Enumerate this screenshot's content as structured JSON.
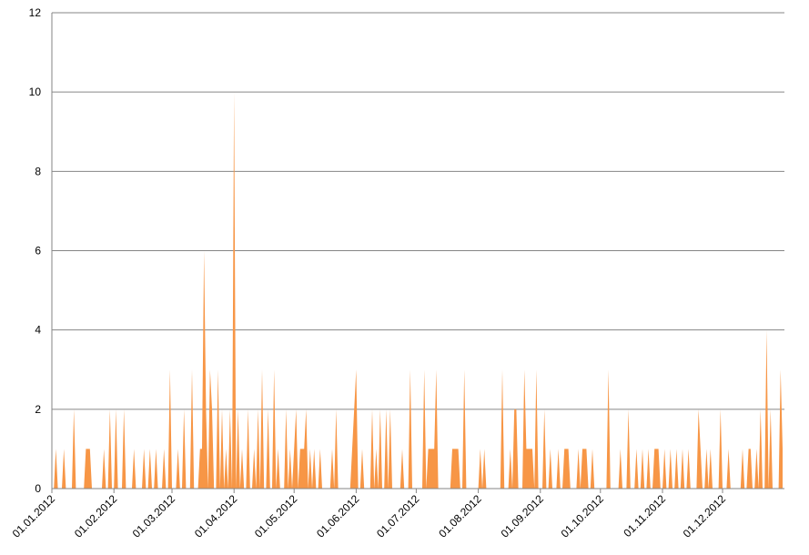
{
  "chart_data": {
    "type": "area",
    "color": "#f79646",
    "grid": true,
    "ylim": [
      0,
      12
    ],
    "yticks": [
      0,
      2,
      4,
      6,
      8,
      10,
      12
    ],
    "categories": [
      "01.01.2012",
      null,
      null,
      null,
      null,
      null,
      null,
      null,
      null,
      null,
      null,
      null,
      null,
      null,
      null,
      null,
      null,
      null,
      null,
      null,
      null,
      null,
      null,
      null,
      null,
      null,
      null,
      null,
      null,
      null,
      null,
      "01.02.2012",
      null,
      null,
      null,
      null,
      null,
      null,
      null,
      null,
      null,
      null,
      null,
      null,
      null,
      null,
      null,
      null,
      null,
      null,
      null,
      null,
      null,
      null,
      null,
      null,
      null,
      null,
      null,
      null,
      "01.03.2012",
      null,
      null,
      null,
      null,
      null,
      null,
      null,
      null,
      null,
      null,
      null,
      null,
      null,
      null,
      null,
      null,
      null,
      null,
      null,
      null,
      null,
      null,
      null,
      null,
      null,
      null,
      null,
      null,
      null,
      null,
      "01.04.2012",
      null,
      null,
      null,
      null,
      null,
      null,
      null,
      null,
      null,
      null,
      null,
      null,
      null,
      null,
      null,
      null,
      null,
      null,
      null,
      null,
      null,
      null,
      null,
      null,
      null,
      null,
      null,
      null,
      null,
      "01.05.2012",
      null,
      null,
      null,
      null,
      null,
      null,
      null,
      null,
      null,
      null,
      null,
      null,
      null,
      null,
      null,
      null,
      null,
      null,
      null,
      null,
      null,
      null,
      null,
      null,
      null,
      null,
      null,
      null,
      null,
      null,
      "01.06.2012",
      null,
      null,
      null,
      null,
      null,
      null,
      null,
      null,
      null,
      null,
      null,
      null,
      null,
      null,
      null,
      null,
      null,
      null,
      null,
      null,
      null,
      null,
      null,
      null,
      null,
      null,
      null,
      null,
      null,
      "01.07.2012",
      null,
      null,
      null,
      null,
      null,
      null,
      null,
      null,
      null,
      null,
      null,
      null,
      null,
      null,
      null,
      null,
      null,
      null,
      null,
      null,
      null,
      null,
      null,
      null,
      null,
      null,
      null,
      null,
      null,
      null,
      "01.08.2012",
      null,
      null,
      null,
      null,
      null,
      null,
      null,
      null,
      null,
      null,
      null,
      null,
      null,
      null,
      null,
      null,
      null,
      null,
      null,
      null,
      null,
      null,
      null,
      null,
      null,
      null,
      null,
      null,
      null,
      null,
      "01.09.2012",
      null,
      null,
      null,
      null,
      null,
      null,
      null,
      null,
      null,
      null,
      null,
      null,
      null,
      null,
      null,
      null,
      null,
      null,
      null,
      null,
      null,
      null,
      null,
      null,
      null,
      null,
      null,
      null,
      null,
      "01.10.2012",
      null,
      null,
      null,
      null,
      null,
      null,
      null,
      null,
      null,
      null,
      null,
      null,
      null,
      null,
      null,
      null,
      null,
      null,
      null,
      null,
      null,
      null,
      null,
      null,
      null,
      null,
      null,
      null,
      null,
      null,
      "01.11.2012",
      null,
      null,
      null,
      null,
      null,
      null,
      null,
      null,
      null,
      null,
      null,
      null,
      null,
      null,
      null,
      null,
      null,
      null,
      null,
      null,
      null,
      null,
      null,
      null,
      null,
      null,
      null,
      null,
      null,
      "01.12.2012",
      null,
      null,
      null,
      null,
      null,
      null,
      null,
      null,
      null,
      null,
      null,
      null,
      null,
      null,
      null,
      null,
      null,
      null,
      null,
      null,
      null,
      null,
      null,
      null,
      null,
      null,
      null,
      null,
      null,
      null
    ],
    "values": [
      0,
      0,
      1,
      0,
      0,
      0,
      1,
      0,
      0,
      0,
      0,
      2,
      0,
      0,
      0,
      0,
      0,
      1,
      1,
      1,
      0,
      0,
      0,
      0,
      0,
      0,
      1,
      0,
      0,
      2,
      0,
      0,
      2,
      0,
      0,
      0,
      2,
      0,
      0,
      0,
      0,
      1,
      0,
      0,
      0,
      0,
      1,
      0,
      0,
      1,
      0,
      0,
      1,
      0,
      0,
      0,
      1,
      0,
      0,
      3,
      0,
      0,
      0,
      1,
      0,
      0,
      2,
      0,
      0,
      0,
      3,
      0,
      0,
      0,
      1,
      1,
      6,
      2,
      0,
      3,
      2,
      0,
      0,
      3,
      0,
      2,
      0,
      1,
      0,
      2,
      0,
      10,
      0,
      2,
      0,
      1,
      0,
      0,
      2,
      0,
      0,
      1,
      0,
      2,
      0,
      3,
      0,
      0,
      2,
      0,
      0,
      3,
      0,
      1,
      0,
      0,
      0,
      2,
      0,
      1,
      0,
      1,
      2,
      0,
      1,
      1,
      1,
      2,
      0,
      1,
      0,
      1,
      0,
      0,
      1,
      0,
      0,
      0,
      0,
      0,
      1,
      0,
      2,
      0,
      0,
      0,
      0,
      0,
      0,
      0,
      1,
      2,
      3,
      0,
      0,
      1,
      0,
      0,
      0,
      0,
      2,
      0,
      1,
      0,
      2,
      0,
      0,
      2,
      0,
      2,
      0,
      0,
      0,
      0,
      0,
      1,
      0,
      0,
      0,
      3,
      0,
      0,
      0,
      0,
      0,
      0,
      3,
      0,
      1,
      1,
      1,
      1,
      3,
      0,
      0,
      0,
      0,
      0,
      0,
      0,
      1,
      1,
      1,
      1,
      0,
      0,
      3,
      0,
      0,
      0,
      0,
      0,
      0,
      0,
      1,
      0,
      1,
      0,
      0,
      0,
      0,
      0,
      0,
      0,
      0,
      3,
      0,
      0,
      0,
      1,
      0,
      2,
      2,
      0,
      0,
      0,
      3,
      1,
      1,
      1,
      1,
      0,
      3,
      0,
      0,
      0,
      2,
      0,
      0,
      1,
      0,
      0,
      0,
      1,
      0,
      0,
      1,
      1,
      1,
      0,
      0,
      0,
      0,
      1,
      0,
      1,
      1,
      1,
      0,
      0,
      1,
      0,
      0,
      0,
      0,
      0,
      0,
      0,
      3,
      0,
      0,
      0,
      0,
      0,
      1,
      0,
      0,
      0,
      2,
      0,
      0,
      0,
      1,
      0,
      0,
      1,
      0,
      0,
      1,
      0,
      0,
      1,
      1,
      1,
      0,
      0,
      1,
      0,
      0,
      1,
      0,
      0,
      1,
      0,
      0,
      1,
      0,
      0,
      1,
      0,
      0,
      0,
      0,
      2,
      1,
      0,
      0,
      1,
      0,
      1,
      0,
      0,
      0,
      0,
      2,
      0,
      0,
      0,
      1,
      0,
      0,
      0,
      0,
      0,
      0,
      1,
      0,
      0,
      1,
      1,
      0,
      0,
      1,
      0,
      2,
      0,
      0,
      4,
      0,
      2,
      0,
      0,
      0,
      0,
      3,
      1
    ]
  }
}
